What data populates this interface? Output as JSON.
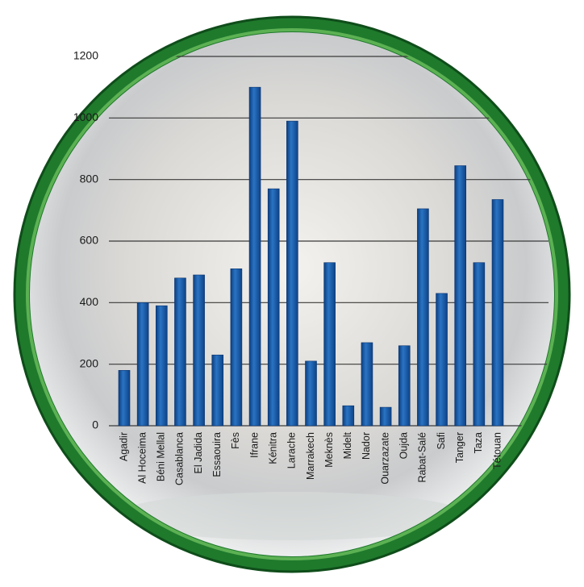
{
  "chart_data": {
    "type": "bar",
    "categories": [
      "Agadir",
      "Al Hoceima",
      "Béni Mellal",
      "Casablanca",
      "El Jadida",
      "Essaouira",
      "Fès",
      "Ifrane",
      "Kénitra",
      "Larache",
      "Marrakech",
      "Meknès",
      "Midelt",
      "Nador",
      "Ouarzazate",
      "Oujda",
      "Rabat-Salé",
      "Safi",
      "Tanger",
      "Taza",
      "Tétouan"
    ],
    "values": [
      180,
      400,
      390,
      480,
      490,
      230,
      510,
      1100,
      770,
      990,
      210,
      530,
      65,
      270,
      60,
      260,
      705,
      430,
      845,
      530,
      735
    ],
    "color": "#1f63b0",
    "ylim": [
      0,
      1200
    ],
    "yticks": [
      0,
      200,
      400,
      600,
      800,
      1000,
      1200
    ],
    "grid": true
  }
}
